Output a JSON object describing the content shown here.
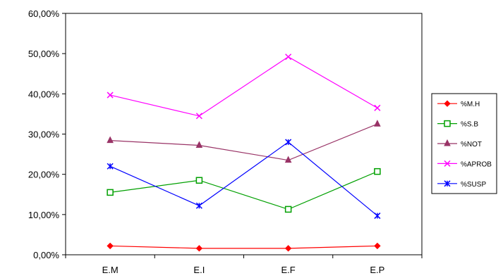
{
  "chart_data": {
    "type": "line",
    "title": "",
    "xlabel": "",
    "ylabel": "",
    "categories": [
      "E.M",
      "E.I",
      "E.F",
      "E.P"
    ],
    "ylim": [
      0,
      0.6
    ],
    "yticks": [
      "0,00%",
      "10,00%",
      "20,00%",
      "30,00%",
      "40,00%",
      "50,00%",
      "60,00%"
    ],
    "grid": false,
    "legend_position": "right",
    "series": [
      {
        "name": "%M.H",
        "color": "#ff0000",
        "marker": "diamond",
        "values": [
          0.022,
          0.016,
          0.016,
          0.022
        ]
      },
      {
        "name": "%S.B",
        "color": "#00a000",
        "marker": "square",
        "values": [
          0.155,
          0.185,
          0.113,
          0.207
        ]
      },
      {
        "name": "%NOT",
        "color": "#993366",
        "marker": "triangle",
        "values": [
          0.284,
          0.272,
          0.235,
          0.325
        ]
      },
      {
        "name": "%APROB",
        "color": "#ff00ff",
        "marker": "x",
        "values": [
          0.397,
          0.345,
          0.492,
          0.365
        ]
      },
      {
        "name": "%SUSP",
        "color": "#0000ff",
        "marker": "star",
        "values": [
          0.22,
          0.122,
          0.28,
          0.097
        ]
      }
    ]
  }
}
